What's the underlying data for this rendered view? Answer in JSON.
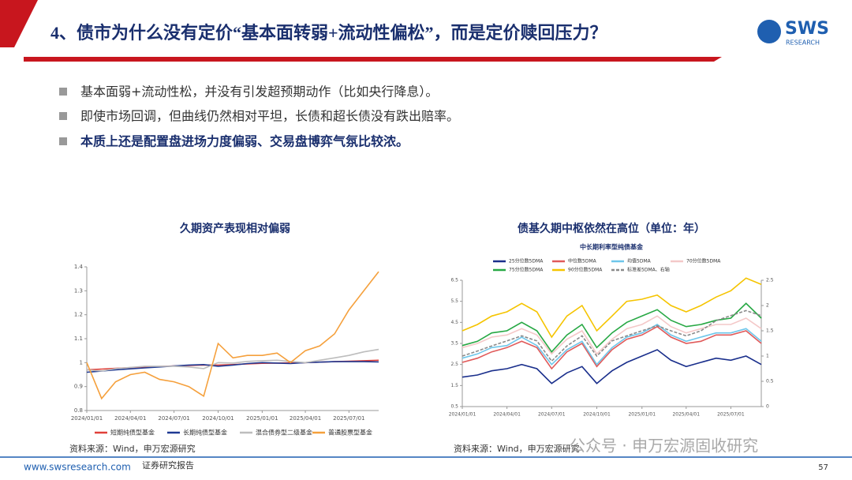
{
  "header": {
    "title": "4、债市为什么没有定价“基本面转弱+流动性偏松”，而是定价赎回压力？",
    "logo": "SWS",
    "logo_sub": "RESEARCH"
  },
  "bullets": [
    "基本面弱+流动性松，并没有引发超预期动作（比如央行降息）。",
    "即使市场回调，但曲线仍然相对平坦，长债和超长债没有跌出赔率。",
    "本质上还是配置盘进场力度偏弱、交易盘博弈气氛比较浓。"
  ],
  "chart_data": [
    {
      "type": "line",
      "title": "久期资产表现相对偏弱",
      "x": [
        "2024/01/01",
        "2024/02/01",
        "2024/03/01",
        "2024/04/01",
        "2024/05/01",
        "2024/06/01",
        "2024/07/01",
        "2024/08/01",
        "2024/09/01",
        "2024/10/01",
        "2024/11/01",
        "2024/12/01",
        "2025/01/01",
        "2025/02/01",
        "2025/03/01",
        "2025/04/01",
        "2025/05/01",
        "2025/06/01",
        "2025/07/01",
        "2025/08/01",
        "2025/09/01"
      ],
      "series": [
        {
          "name": "短期纯债型基金",
          "color": "#e0413a",
          "values": [
            0.97,
            0.973,
            0.976,
            0.979,
            0.982,
            0.984,
            0.986,
            0.988,
            0.99,
            0.99,
            0.992,
            0.995,
            0.997,
            0.998,
            0.999,
            1.0,
            1.002,
            1.004,
            1.006,
            1.008,
            1.01
          ]
        },
        {
          "name": "长期纯债型基金",
          "color": "#1f3a93",
          "values": [
            0.96,
            0.965,
            0.97,
            0.974,
            0.978,
            0.982,
            0.986,
            0.99,
            0.992,
            0.985,
            0.99,
            0.996,
            1.0,
            0.998,
            0.996,
            1.0,
            1.002,
            1.004,
            1.004,
            1.004,
            1.003
          ]
        },
        {
          "name": "混合债券型二级基金",
          "color": "#bdbdbd",
          "values": [
            0.97,
            0.965,
            0.975,
            0.98,
            0.985,
            0.985,
            0.985,
            0.982,
            0.975,
            1.0,
            0.998,
            1.005,
            1.008,
            1.01,
            1.005,
            1.0,
            1.01,
            1.02,
            1.03,
            1.045,
            1.055
          ]
        },
        {
          "name": "普通股票型基金",
          "color": "#f5a03c",
          "values": [
            1.0,
            0.85,
            0.92,
            0.95,
            0.96,
            0.93,
            0.92,
            0.9,
            0.86,
            1.08,
            1.02,
            1.03,
            1.03,
            1.04,
            1.0,
            1.05,
            1.07,
            1.12,
            1.22,
            1.3,
            1.38
          ]
        }
      ],
      "xticks": [
        "2024/01/01",
        "2024/04/01",
        "2024/07/01",
        "2024/10/01",
        "2025/01/01",
        "2025/04/01",
        "2025/07/01"
      ],
      "ylim": [
        0.8,
        1.4
      ],
      "yticks": [
        0.8,
        0.9,
        1,
        1.1,
        1.2,
        1.3,
        1.4
      ],
      "source": "资料来源：Wind，申万宏源研究"
    },
    {
      "type": "line",
      "title": "债基久期中枢依然在高位（单位：年）",
      "subtitle": "中长期利率型纯债基金",
      "x": [
        "2024/01/01",
        "2024/02/01",
        "2024/03/01",
        "2024/04/01",
        "2024/05/01",
        "2024/06/01",
        "2024/07/01",
        "2024/08/01",
        "2024/09/01",
        "2024/10/01",
        "2024/11/01",
        "2024/12/01",
        "2025/01/01",
        "2025/02/01",
        "2025/03/01",
        "2025/04/01",
        "2025/05/01",
        "2025/06/01",
        "2025/07/01",
        "2025/08/01",
        "2025/09/01"
      ],
      "series": [
        {
          "name": "25分位数5DMA",
          "color": "#1a2f8c",
          "values": [
            1.9,
            2.0,
            2.2,
            2.3,
            2.5,
            2.3,
            1.6,
            2.1,
            2.4,
            1.6,
            2.2,
            2.6,
            2.9,
            3.2,
            2.7,
            2.4,
            2.6,
            2.8,
            2.7,
            2.9,
            2.5
          ]
        },
        {
          "name": "中位数5DMA",
          "color": "#e05a5a",
          "values": [
            2.6,
            2.8,
            3.1,
            3.3,
            3.6,
            3.3,
            2.3,
            3.1,
            3.5,
            2.4,
            3.2,
            3.7,
            3.9,
            4.3,
            3.8,
            3.5,
            3.6,
            3.9,
            3.9,
            4.1,
            3.5
          ]
        },
        {
          "name": "均值5DMA",
          "color": "#6ec6ea",
          "values": [
            2.8,
            3.0,
            3.3,
            3.4,
            3.8,
            3.4,
            2.5,
            3.2,
            3.6,
            2.5,
            3.3,
            3.8,
            4.0,
            4.4,
            3.9,
            3.6,
            3.8,
            4.0,
            4.0,
            4.2,
            3.6
          ]
        },
        {
          "name": "70分位数5DMA",
          "color": "#f4c8c8",
          "values": [
            3.3,
            3.5,
            3.8,
            3.9,
            4.2,
            3.9,
            3.0,
            3.7,
            4.1,
            3.0,
            3.7,
            4.2,
            4.4,
            4.8,
            4.3,
            4.0,
            4.2,
            4.4,
            4.4,
            4.7,
            4.2
          ]
        },
        {
          "name": "75分位数5DMA",
          "color": "#27a844",
          "values": [
            3.4,
            3.6,
            4.0,
            4.1,
            4.5,
            4.1,
            3.1,
            3.9,
            4.4,
            3.3,
            4.0,
            4.5,
            4.8,
            5.1,
            4.6,
            4.3,
            4.4,
            4.6,
            4.7,
            5.4,
            4.7
          ]
        },
        {
          "name": "90分位数5DMA",
          "color": "#f5c400",
          "values": [
            4.1,
            4.4,
            4.8,
            5.0,
            5.4,
            5.0,
            3.8,
            4.8,
            5.3,
            4.1,
            4.8,
            5.5,
            5.6,
            5.8,
            5.3,
            5.0,
            5.3,
            5.7,
            6.0,
            6.6,
            6.3
          ]
        },
        {
          "name": "标准差5DMA、右轴",
          "color": "#8a8a8a",
          "dashed": true,
          "axis": "y2",
          "values": [
            1.0,
            1.1,
            1.2,
            1.3,
            1.4,
            1.3,
            0.9,
            1.2,
            1.4,
            1.0,
            1.3,
            1.4,
            1.5,
            1.6,
            1.5,
            1.4,
            1.5,
            1.7,
            1.8,
            1.9,
            1.8
          ]
        }
      ],
      "xticks": [
        "2024/01/01",
        "2024/04/01",
        "2024/07/01",
        "2024/10/01",
        "2025/01/01",
        "2025/04/01",
        "2025/07/01"
      ],
      "ylim": [
        0.5,
        6.5
      ],
      "yticks": [
        0.5,
        1.5,
        2.5,
        3.5,
        4.5,
        5.5,
        6.5
      ],
      "y2lim": [
        0,
        2.5
      ],
      "y2ticks": [
        0,
        0.5,
        1,
        1.5,
        2,
        2.5
      ],
      "source": "资料来源：Wind，申万宏源研究"
    }
  ],
  "watermark": "公众号 · 申万宏源固收研究",
  "footer": {
    "site": "www.swsresearch.com",
    "label": "证券研究报告",
    "page": "57"
  }
}
